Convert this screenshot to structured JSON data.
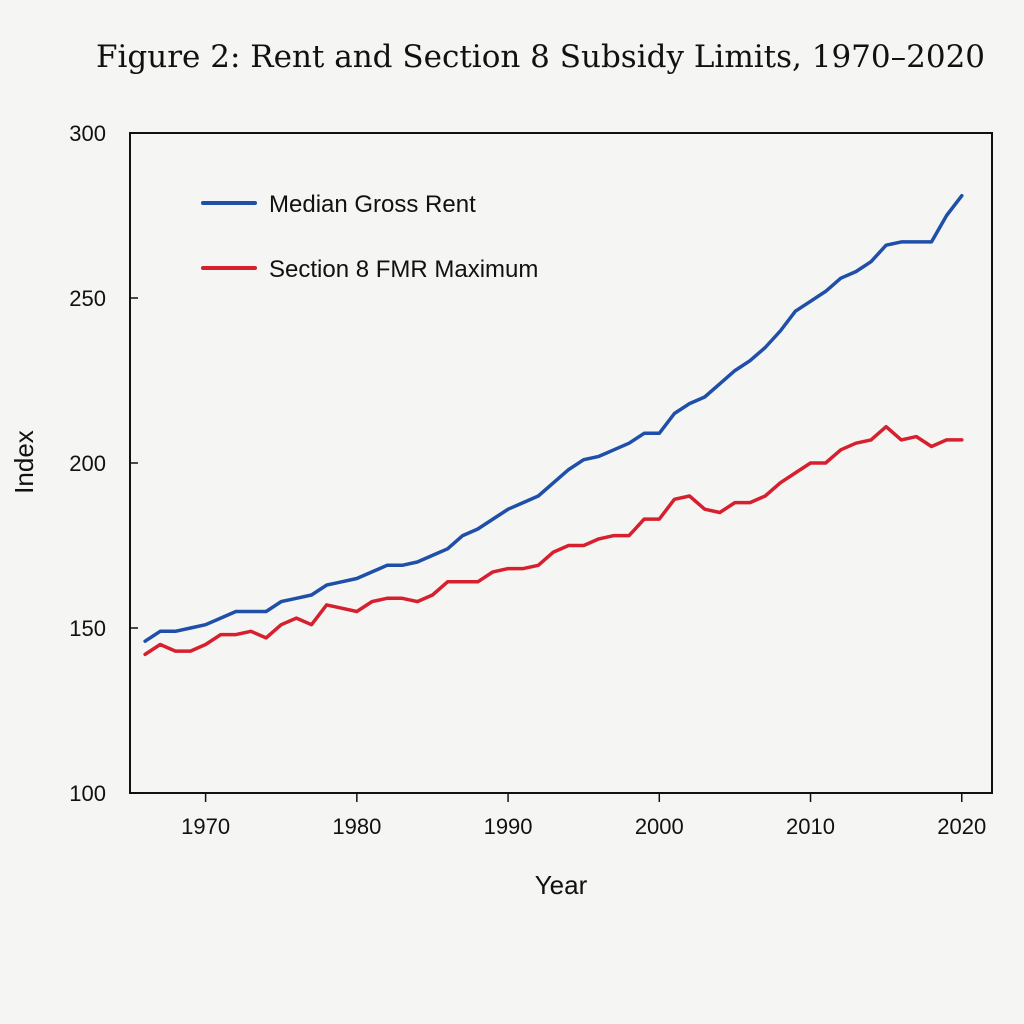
{
  "chart_data": {
    "type": "line",
    "title": "Figure 2: Rent and Section 8 Subsidy Limits, 1970–2020",
    "xlabel": "Year",
    "ylabel": "Index",
    "xlim": [
      1965,
      2022
    ],
    "ylim": [
      100,
      300
    ],
    "xticks": [
      1970,
      1980,
      1990,
      2000,
      2010,
      2020
    ],
    "yticks": [
      100,
      150,
      200,
      250,
      300
    ],
    "grid": false,
    "legend_position": "top-left",
    "x": [
      1966,
      1967,
      1968,
      1969,
      1970,
      1971,
      1972,
      1973,
      1974,
      1975,
      1976,
      1977,
      1978,
      1979,
      1980,
      1981,
      1982,
      1983,
      1984,
      1985,
      1986,
      1987,
      1988,
      1989,
      1990,
      1991,
      1992,
      1993,
      1994,
      1995,
      1996,
      1997,
      1998,
      1999,
      2000,
      2001,
      2002,
      2003,
      2004,
      2005,
      2006,
      2007,
      2008,
      2009,
      2010,
      2011,
      2012,
      2013,
      2014,
      2015,
      2016,
      2017,
      2018,
      2019,
      2020
    ],
    "series": [
      {
        "name": "Median Gross Rent",
        "color": "#1f4fa8",
        "values": [
          146,
          149,
          149,
          150,
          151,
          153,
          155,
          155,
          155,
          158,
          159,
          160,
          163,
          164,
          165,
          167,
          169,
          169,
          170,
          172,
          174,
          178,
          180,
          183,
          186,
          188,
          190,
          194,
          198,
          201,
          202,
          204,
          206,
          209,
          209,
          215,
          218,
          220,
          224,
          228,
          231,
          235,
          240,
          246,
          249,
          252,
          256,
          258,
          261,
          266,
          267,
          267,
          267,
          275,
          281
        ]
      },
      {
        "name": "Section 8 FMR Maximum",
        "color": "#d6202e",
        "values": [
          142,
          145,
          143,
          143,
          145,
          148,
          148,
          149,
          147,
          151,
          153,
          151,
          157,
          156,
          155,
          158,
          159,
          159,
          158,
          160,
          164,
          164,
          164,
          167,
          168,
          168,
          169,
          173,
          175,
          175,
          177,
          178,
          178,
          183,
          183,
          189,
          190,
          186,
          185,
          188,
          188,
          190,
          194,
          197,
          200,
          200,
          204,
          206,
          207,
          211,
          207,
          208,
          205,
          207,
          207
        ]
      }
    ]
  }
}
